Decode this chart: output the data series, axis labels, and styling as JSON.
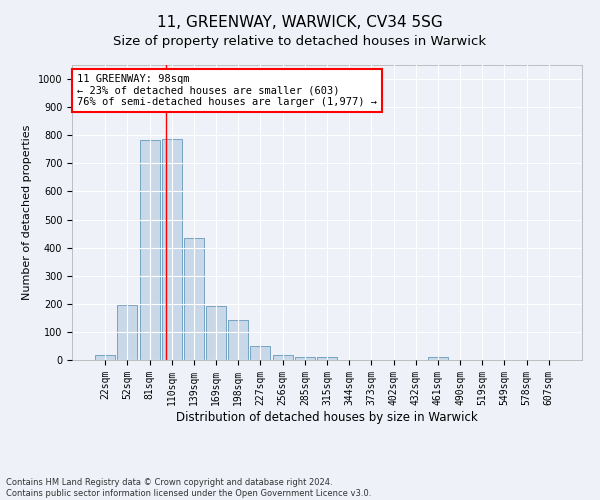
{
  "title1": "11, GREENWAY, WARWICK, CV34 5SG",
  "title2": "Size of property relative to detached houses in Warwick",
  "xlabel": "Distribution of detached houses by size in Warwick",
  "ylabel": "Number of detached properties",
  "categories": [
    "22sqm",
    "52sqm",
    "81sqm",
    "110sqm",
    "139sqm",
    "169sqm",
    "198sqm",
    "227sqm",
    "256sqm",
    "285sqm",
    "315sqm",
    "344sqm",
    "373sqm",
    "402sqm",
    "432sqm",
    "461sqm",
    "490sqm",
    "519sqm",
    "549sqm",
    "578sqm",
    "607sqm"
  ],
  "values": [
    18,
    197,
    783,
    787,
    435,
    192,
    142,
    50,
    17,
    10,
    10,
    0,
    0,
    0,
    0,
    12,
    0,
    0,
    0,
    0,
    0
  ],
  "bar_color": "#c8d8e8",
  "bar_edge_color": "#6699bb",
  "property_line_x": 2.72,
  "annotation_text": "11 GREENWAY: 98sqm\n← 23% of detached houses are smaller (603)\n76% of semi-detached houses are larger (1,977) →",
  "annotation_box_color": "white",
  "annotation_box_edge_color": "red",
  "ylim": [
    0,
    1050
  ],
  "yticks": [
    0,
    100,
    200,
    300,
    400,
    500,
    600,
    700,
    800,
    900,
    1000
  ],
  "bg_color": "#eef2f8",
  "plot_bg_color": "#eef2f8",
  "grid_color": "white",
  "footnote": "Contains HM Land Registry data © Crown copyright and database right 2024.\nContains public sector information licensed under the Open Government Licence v3.0.",
  "title1_fontsize": 11,
  "title2_fontsize": 9.5,
  "xlabel_fontsize": 8.5,
  "ylabel_fontsize": 8,
  "tick_fontsize": 7,
  "annotation_fontsize": 7.5,
  "footnote_fontsize": 6
}
